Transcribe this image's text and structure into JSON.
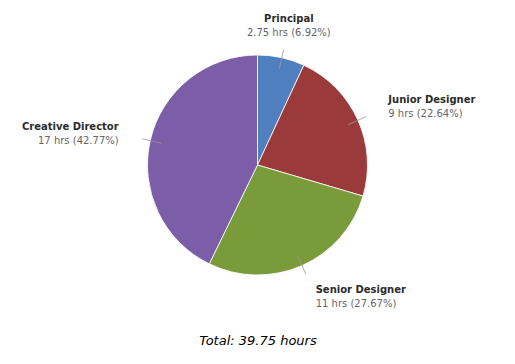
{
  "chart_data": {
    "type": "pie",
    "categories": [
      "Principal",
      "Junior Designer",
      "Senior Designer",
      "Creative Director"
    ],
    "values": [
      6.92,
      22.64,
      27.67,
      42.77
    ],
    "colors": [
      "#4f7fbf",
      "#9b3a3a",
      "#7a9b3a",
      "#7b5ea7"
    ],
    "data_labels": true,
    "value_labels": [
      "2.75 hrs (6.92%)",
      "9 hrs (22.64%)",
      "11 hrs (27.67%)",
      "17 hrs (42.77%)"
    ],
    "annotations": [
      "Total: 39.75 hours"
    ]
  }
}
